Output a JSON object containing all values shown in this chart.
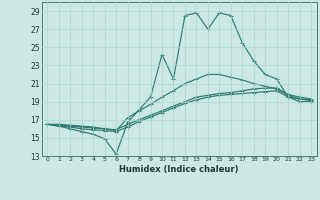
{
  "xlabel": "Humidex (Indice chaleur)",
  "bg_color": "#cce8e4",
  "grid_color": "#aed4ce",
  "line_color": "#2e7b6e",
  "ylim": [
    13,
    30
  ],
  "xlim": [
    -0.5,
    23.5
  ],
  "yticks": [
    13,
    15,
    17,
    19,
    21,
    23,
    25,
    27,
    29
  ],
  "xticks": [
    0,
    1,
    2,
    3,
    4,
    5,
    6,
    7,
    8,
    9,
    10,
    11,
    12,
    13,
    14,
    15,
    16,
    17,
    18,
    19,
    20,
    21,
    22,
    23
  ],
  "line1_x": [
    0,
    1,
    2,
    3,
    4,
    5,
    6,
    7,
    8,
    9,
    10,
    11,
    12,
    13,
    14,
    15,
    16,
    17,
    18,
    19,
    20,
    21,
    22,
    23
  ],
  "line1_y": [
    16.5,
    16.3,
    16.0,
    15.7,
    15.4,
    14.9,
    13.2,
    16.7,
    18.1,
    19.5,
    24.2,
    21.5,
    28.5,
    28.8,
    27.0,
    28.8,
    28.5,
    25.5,
    23.5,
    22.0,
    21.5,
    19.5,
    19.0,
    19.0
  ],
  "line2_x": [
    0,
    1,
    2,
    3,
    4,
    5,
    6,
    7,
    8,
    9,
    10,
    11,
    12,
    13,
    14,
    15,
    16,
    17,
    18,
    19,
    20,
    21,
    22,
    23
  ],
  "line2_y": [
    16.5,
    16.5,
    16.4,
    16.3,
    16.2,
    16.0,
    15.8,
    17.2,
    18.0,
    18.7,
    19.5,
    20.2,
    21.0,
    21.5,
    22.0,
    22.0,
    21.7,
    21.4,
    21.0,
    20.7,
    20.4,
    19.7,
    19.3,
    19.2
  ],
  "line3_x": [
    0,
    1,
    2,
    3,
    4,
    5,
    6,
    7,
    8,
    9,
    10,
    11,
    12,
    13,
    14,
    15,
    16,
    17,
    18,
    19,
    20,
    21,
    22,
    23
  ],
  "line3_y": [
    16.5,
    16.4,
    16.3,
    16.2,
    16.1,
    16.0,
    15.9,
    16.5,
    17.0,
    17.5,
    18.0,
    18.5,
    19.0,
    19.5,
    19.7,
    19.9,
    20.0,
    20.2,
    20.4,
    20.5,
    20.5,
    19.8,
    19.5,
    19.3
  ],
  "line4_x": [
    0,
    1,
    2,
    3,
    4,
    5,
    6,
    7,
    8,
    9,
    10,
    11,
    12,
    13,
    14,
    15,
    16,
    17,
    18,
    19,
    20,
    21,
    22,
    23
  ],
  "line4_y": [
    16.5,
    16.3,
    16.2,
    16.0,
    15.9,
    15.8,
    15.7,
    16.2,
    16.8,
    17.3,
    17.8,
    18.3,
    18.8,
    19.2,
    19.5,
    19.7,
    19.8,
    19.9,
    20.0,
    20.1,
    20.2,
    19.5,
    19.3,
    19.1
  ]
}
